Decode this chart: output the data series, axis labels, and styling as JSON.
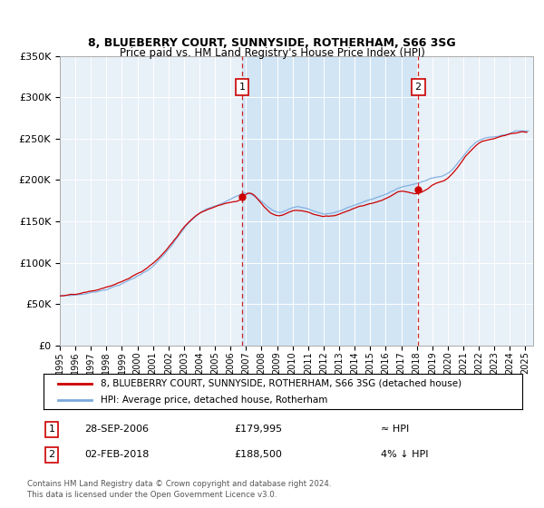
{
  "title": "8, BLUEBERRY COURT, SUNNYSIDE, ROTHERHAM, S66 3SG",
  "subtitle": "Price paid vs. HM Land Registry's House Price Index (HPI)",
  "ylim": [
    0,
    350000
  ],
  "xlim_start": 1995.0,
  "xlim_end": 2025.5,
  "background_color": "#ffffff",
  "plot_bg_color": "#e8f0f8",
  "grid_color": "#d0d8e0",
  "sale1_date": 2006.74,
  "sale1_price": 179995,
  "sale1_label": "1",
  "sale2_date": 2018.09,
  "sale2_price": 188500,
  "sale2_label": "2",
  "legend_line1": "8, BLUEBERRY COURT, SUNNYSIDE, ROTHERHAM, S66 3SG (detached house)",
  "legend_line2": "HPI: Average price, detached house, Rotherham",
  "footer1": "Contains HM Land Registry data © Crown copyright and database right 2024.",
  "footer2": "This data is licensed under the Open Government Licence v3.0.",
  "table_row1_num": "1",
  "table_row1_date": "28-SEP-2006",
  "table_row1_price": "£179,995",
  "table_row1_hpi": "≈ HPI",
  "table_row2_num": "2",
  "table_row2_date": "02-FEB-2018",
  "table_row2_price": "£188,500",
  "table_row2_hpi": "4% ↓ HPI",
  "red_line_color": "#cc0000",
  "blue_line_color": "#7aaadd",
  "marker_color": "#cc0000",
  "highlight_bg_color": "#d0e4f5"
}
